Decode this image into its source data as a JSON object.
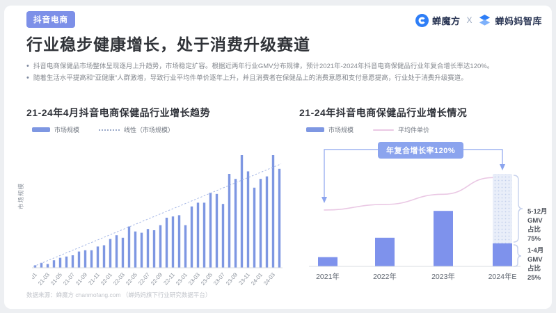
{
  "slide": {
    "tag": "抖音电商",
    "brand": {
      "name1": "蝉魔方",
      "separator": "X",
      "name2": "蝉妈妈智库"
    },
    "title": "行业稳步健康增长，处于消费升级赛道",
    "bullets": [
      "抖音电商保健品市场整体呈现逐月上升趋势，市场稳定扩容。根据近两年行业GMV分布规律，预计2021年-2024年抖音电商保健品行业年复合增长率达120%。",
      "随着生活水平提高和“亚健康”人群激增，导致行业平均件单价逐年上升，并且消费者在保健品上的消费意愿和支付意愿提高，行业处于消费升级赛道。"
    ],
    "footer": "数据来源：蝉魔方 chanmofang.com （蝉妈妈旗下行业研究数据平台）"
  },
  "colors": {
    "tag_bg": "#7d90e8",
    "bar_left": "#7e97e2",
    "bar_right": "#7e92ec",
    "trendline": "#a4b6e6",
    "pink_line": "#eac8e4",
    "badge_bg": "#8ba4ee",
    "hatch_base": "#e9eef9",
    "hatch_dot": "#c2cfec",
    "logo_blue": "#2e7ef7"
  },
  "chart_data": [
    {
      "type": "bar",
      "title": "21-24年4月抖音电商保健品行业增长趋势",
      "xlabel": "",
      "ylabel": "市场规模",
      "grid": false,
      "legend": [
        {
          "label": "市场规模",
          "swatch": "bar"
        },
        {
          "label": "线性（市场规模）",
          "swatch": "dotted-line"
        }
      ],
      "categories": [
        "21-01",
        "21-02",
        "21-03",
        "21-04",
        "21-05",
        "21-06",
        "21-07",
        "21-08",
        "21-09",
        "21-10",
        "21-11",
        "21-12",
        "22-01",
        "22-02",
        "22-03",
        "22-04",
        "22-05",
        "22-06",
        "22-07",
        "22-08",
        "22-09",
        "22-10",
        "22-11",
        "22-12",
        "23-01",
        "23-02",
        "23-03",
        "23-04",
        "23-05",
        "23-06",
        "23-07",
        "23-08",
        "23-09",
        "23-10",
        "23-11",
        "23-12",
        "24-01",
        "24-02",
        "24-03",
        "24-04"
      ],
      "values": [
        2,
        4,
        3,
        6,
        8,
        9,
        10,
        13,
        14,
        14,
        17,
        18,
        23,
        26,
        24,
        33,
        29,
        28,
        31,
        30,
        34,
        40,
        41,
        42,
        34,
        49,
        52,
        52,
        60,
        59,
        51,
        75,
        71,
        90,
        77,
        64,
        71,
        73,
        90,
        79
      ],
      "tick_step": 2,
      "ylim": [
        0,
        100
      ],
      "trendline": {
        "style": "dashed",
        "start_pct": 1,
        "end_pct": 83
      }
    },
    {
      "type": "bar",
      "title": "21-24年抖音电商保健品行业增长情况",
      "xlabel": "",
      "ylabel": "",
      "grid": false,
      "legend": [
        {
          "label": "市场规模",
          "swatch": "bar"
        },
        {
          "label": "平均件单价",
          "swatch": "line"
        }
      ],
      "categories": [
        "2021年",
        "2022年",
        "2023年",
        "2024年E"
      ],
      "series": [
        {
          "name": "市场规模",
          "values": [
            10,
            31,
            60,
            100
          ]
        },
        {
          "name": "平均件单价",
          "type": "line",
          "values_pct": [
            61,
            67,
            78,
            96
          ]
        }
      ],
      "split_last_bar": {
        "solid_pct": 25,
        "hatched_pct": 75
      },
      "ylim": [
        0,
        100
      ],
      "annotations": {
        "cagr": "年复合增长率120%",
        "seg_top_l1": "5-12月GMV",
        "seg_top_l2": "占比75%",
        "seg_bottom_l1": "1-4月GMV",
        "seg_bottom_l2": "占比25%"
      }
    }
  ]
}
